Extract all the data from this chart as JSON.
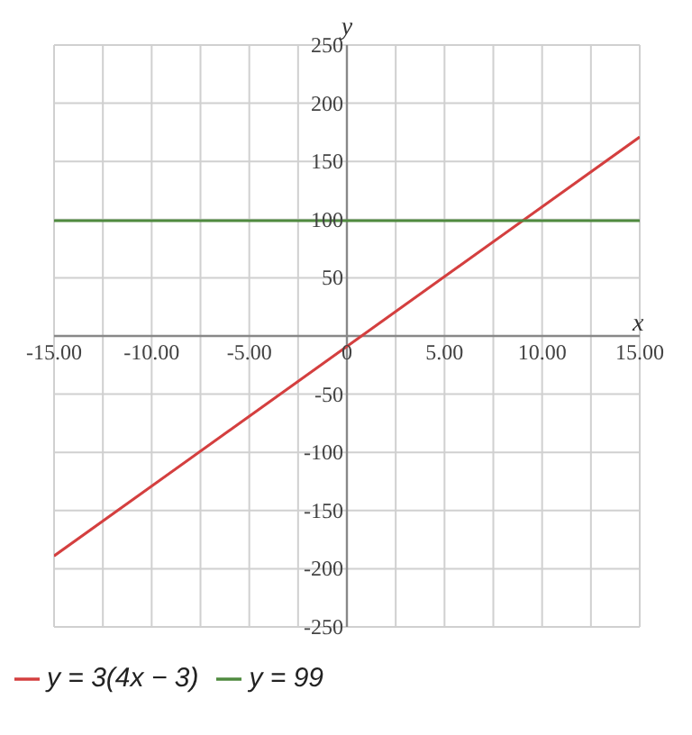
{
  "chart_data": {
    "type": "line",
    "xlabel": "x",
    "ylabel": "y",
    "x": [
      -15,
      15
    ],
    "series": [
      {
        "name": "y = 3(4x − 3)",
        "color": "#d43f3f",
        "values": [
          -189,
          171
        ]
      },
      {
        "name": "y = 99",
        "color": "#4f8a3f",
        "values": [
          99,
          99
        ]
      }
    ],
    "xlim": [
      -15,
      15
    ],
    "xticks": [
      {
        "value": -15,
        "label": "-15.00"
      },
      {
        "value": -12.5,
        "label": null
      },
      {
        "value": -10,
        "label": "-10.00"
      },
      {
        "value": -7.5,
        "label": null
      },
      {
        "value": -5,
        "label": "-5.00"
      },
      {
        "value": -2.5,
        "label": null
      },
      {
        "value": 0,
        "label": "0"
      },
      {
        "value": 2.5,
        "label": null
      },
      {
        "value": 5,
        "label": "5.00"
      },
      {
        "value": 7.5,
        "label": null
      },
      {
        "value": 10,
        "label": "10.00"
      },
      {
        "value": 12.5,
        "label": null
      },
      {
        "value": 15,
        "label": "15.00"
      }
    ],
    "ylim": [
      -250,
      250
    ],
    "yticks": [
      -250,
      -200,
      -150,
      -100,
      -50,
      {
        "value": 0,
        "label": null
      },
      50,
      100,
      150,
      200,
      250
    ],
    "grid": true,
    "legend": "bottom left",
    "marker": "none",
    "line_style": "solid"
  }
}
